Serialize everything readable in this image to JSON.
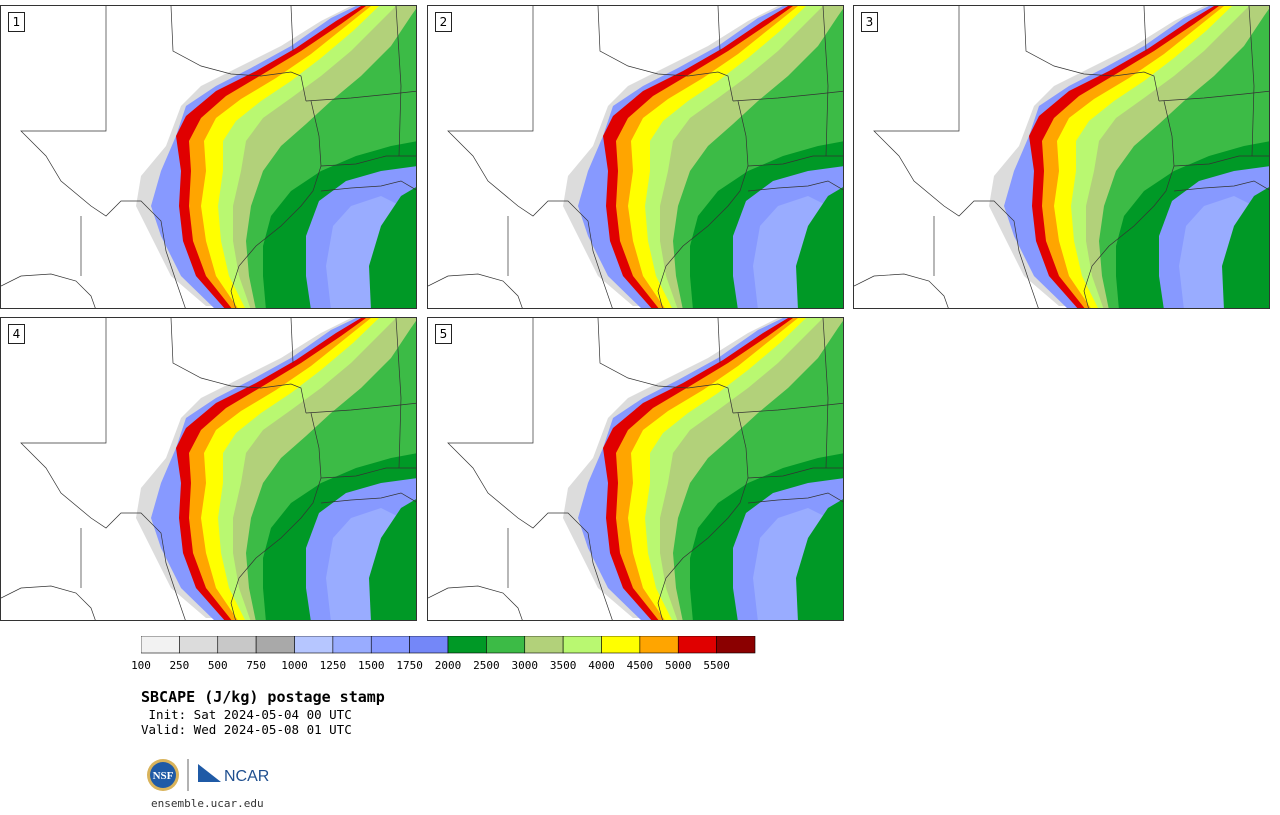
{
  "panels": [
    {
      "label": "1"
    },
    {
      "label": "2"
    },
    {
      "label": "3"
    },
    {
      "label": "4"
    },
    {
      "label": "5"
    }
  ],
  "colorbar": {
    "colors": [
      "#f2f2f2",
      "#dcdcdc",
      "#c8c8c8",
      "#a9a9a9",
      "#b6c6ff",
      "#99acff",
      "#8799ff",
      "#7487f8",
      "#009926",
      "#3cbb46",
      "#b2d17a",
      "#b9f871",
      "#ffff00",
      "#ffa500",
      "#e00000",
      "#8b0000"
    ],
    "ticks": [
      "100",
      "250",
      "500",
      "750",
      "1000",
      "1250",
      "1500",
      "1750",
      "2000",
      "2500",
      "3000",
      "3500",
      "4000",
      "4500",
      "5000",
      "5500"
    ]
  },
  "title": "SBCAPE (J/kg) postage stamp",
  "init_line": " Init: Sat 2024-05-04 00 UTC",
  "valid_line": "Valid: Wed 2024-05-08 01 UTC",
  "logo": {
    "nsf": "NSF",
    "ncar": "NCAR"
  },
  "website": "ensemble.ucar.edu"
}
